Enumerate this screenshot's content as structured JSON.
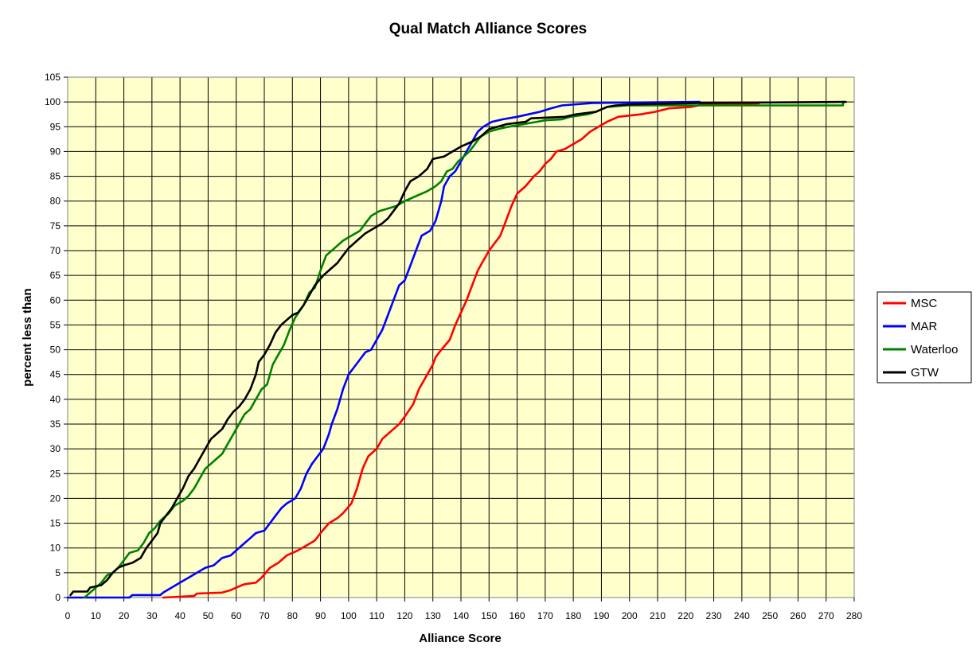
{
  "chart_data": {
    "type": "line",
    "title": "Qual Match Alliance Scores",
    "xlabel": "Alliance Score",
    "ylabel": "percent less than",
    "xlim": [
      0,
      280
    ],
    "ylim": [
      0,
      105
    ],
    "x_ticks": [
      0,
      10,
      20,
      30,
      40,
      50,
      60,
      70,
      80,
      90,
      100,
      110,
      120,
      130,
      140,
      150,
      160,
      170,
      180,
      190,
      200,
      210,
      220,
      230,
      240,
      250,
      260,
      270,
      280
    ],
    "y_ticks": [
      0,
      5,
      10,
      15,
      20,
      25,
      30,
      35,
      40,
      45,
      50,
      55,
      60,
      65,
      70,
      75,
      80,
      85,
      90,
      95,
      100,
      105
    ],
    "grid": true,
    "legend": "right",
    "plot_background": "#FFFFCC",
    "series": [
      {
        "name": "MSC",
        "color": "#FF0000",
        "points": [
          [
            34,
            0
          ],
          [
            45,
            0.3
          ],
          [
            46,
            0.8
          ],
          [
            55,
            1
          ],
          [
            58,
            1.5
          ],
          [
            60,
            2
          ],
          [
            63,
            2.7
          ],
          [
            67,
            3
          ],
          [
            69,
            4
          ],
          [
            72,
            6
          ],
          [
            75,
            7
          ],
          [
            78,
            8.5
          ],
          [
            82,
            9.5
          ],
          [
            85,
            10.5
          ],
          [
            88,
            11.5
          ],
          [
            90,
            13
          ],
          [
            93,
            15
          ],
          [
            96,
            16
          ],
          [
            98,
            17
          ],
          [
            101,
            19
          ],
          [
            103,
            22
          ],
          [
            105,
            26
          ],
          [
            107,
            28.5
          ],
          [
            110,
            30
          ],
          [
            112,
            32
          ],
          [
            115,
            33.5
          ],
          [
            118,
            35
          ],
          [
            120,
            36.5
          ],
          [
            123,
            39
          ],
          [
            125,
            42
          ],
          [
            128,
            45
          ],
          [
            130,
            47
          ],
          [
            131,
            48.5
          ],
          [
            133,
            50
          ],
          [
            136,
            52
          ],
          [
            138,
            55
          ],
          [
            140,
            57.5
          ],
          [
            142,
            60
          ],
          [
            144,
            63
          ],
          [
            146,
            66
          ],
          [
            148,
            68
          ],
          [
            150,
            70
          ],
          [
            152,
            71.5
          ],
          [
            154,
            73
          ],
          [
            156,
            76
          ],
          [
            158,
            79
          ],
          [
            160,
            81.5
          ],
          [
            163,
            83
          ],
          [
            166,
            85
          ],
          [
            168,
            86
          ],
          [
            170,
            87.5
          ],
          [
            172,
            88.5
          ],
          [
            174,
            90
          ],
          [
            177,
            90.5
          ],
          [
            180,
            91.5
          ],
          [
            183,
            92.5
          ],
          [
            186,
            94
          ],
          [
            189,
            95
          ],
          [
            192,
            96
          ],
          [
            196,
            97
          ],
          [
            204,
            97.5
          ],
          [
            209,
            98
          ],
          [
            214,
            98.7
          ],
          [
            222,
            99
          ],
          [
            226,
            99.5
          ],
          [
            246,
            99.7
          ]
        ]
      },
      {
        "name": "MAR",
        "color": "#0000FF",
        "points": [
          [
            0,
            0
          ],
          [
            22,
            0
          ],
          [
            23,
            0.5
          ],
          [
            33,
            0.5
          ],
          [
            34,
            1
          ],
          [
            37,
            2
          ],
          [
            40,
            3
          ],
          [
            43,
            4
          ],
          [
            46,
            5
          ],
          [
            49,
            6
          ],
          [
            52,
            6.5
          ],
          [
            55,
            8
          ],
          [
            58,
            8.5
          ],
          [
            61,
            10
          ],
          [
            63,
            11
          ],
          [
            65,
            12
          ],
          [
            67,
            13
          ],
          [
            70,
            13.5
          ],
          [
            72,
            15
          ],
          [
            74,
            16.5
          ],
          [
            76,
            18
          ],
          [
            78,
            19
          ],
          [
            81,
            20
          ],
          [
            83,
            22
          ],
          [
            85,
            25
          ],
          [
            87,
            27
          ],
          [
            89,
            28.5
          ],
          [
            91,
            30
          ],
          [
            93,
            33
          ],
          [
            94,
            35
          ],
          [
            96,
            38
          ],
          [
            98,
            42
          ],
          [
            100,
            45
          ],
          [
            102,
            46.5
          ],
          [
            104,
            48
          ],
          [
            106,
            49.5
          ],
          [
            108,
            50
          ],
          [
            110,
            52
          ],
          [
            112,
            54
          ],
          [
            114,
            57
          ],
          [
            116,
            60
          ],
          [
            118,
            63
          ],
          [
            120,
            64
          ],
          [
            122,
            67
          ],
          [
            124,
            70
          ],
          [
            126,
            73
          ],
          [
            129,
            74
          ],
          [
            131,
            76
          ],
          [
            133,
            80
          ],
          [
            134,
            83
          ],
          [
            136,
            85
          ],
          [
            138,
            86
          ],
          [
            140,
            88
          ],
          [
            142,
            90
          ],
          [
            144,
            92
          ],
          [
            146,
            94
          ],
          [
            148,
            95
          ],
          [
            151,
            96
          ],
          [
            155,
            96.5
          ],
          [
            160,
            97
          ],
          [
            164,
            97.5
          ],
          [
            168,
            98
          ],
          [
            172,
            98.7
          ],
          [
            176,
            99.3
          ],
          [
            187,
            99.8
          ],
          [
            225,
            100
          ]
        ]
      },
      {
        "name": "Waterloo",
        "color": "#008000",
        "points": [
          [
            6,
            0
          ],
          [
            8,
            1
          ],
          [
            10,
            2
          ],
          [
            12,
            3
          ],
          [
            14,
            4.5
          ],
          [
            16,
            5
          ],
          [
            18,
            6
          ],
          [
            20,
            7.5
          ],
          [
            22,
            9
          ],
          [
            25,
            9.5
          ],
          [
            27,
            11
          ],
          [
            29,
            13
          ],
          [
            31,
            14
          ],
          [
            33,
            15.5
          ],
          [
            36,
            17
          ],
          [
            38,
            18.5
          ],
          [
            41,
            19.5
          ],
          [
            43,
            20.5
          ],
          [
            45,
            22
          ],
          [
            47,
            24
          ],
          [
            49,
            26
          ],
          [
            51,
            27
          ],
          [
            53,
            28
          ],
          [
            55,
            29
          ],
          [
            57,
            31
          ],
          [
            59,
            33
          ],
          [
            61,
            35
          ],
          [
            63,
            37
          ],
          [
            65,
            38
          ],
          [
            67,
            40
          ],
          [
            69,
            42
          ],
          [
            71,
            43
          ],
          [
            73,
            47
          ],
          [
            75,
            49
          ],
          [
            77,
            51
          ],
          [
            79,
            54
          ],
          [
            81,
            56.5
          ],
          [
            84,
            59
          ],
          [
            86,
            61.5
          ],
          [
            88,
            62.5
          ],
          [
            90,
            66
          ],
          [
            92,
            69
          ],
          [
            94,
            70
          ],
          [
            96,
            71
          ],
          [
            98,
            72
          ],
          [
            101,
            73
          ],
          [
            104,
            74
          ],
          [
            106,
            75.5
          ],
          [
            108,
            77
          ],
          [
            111,
            78
          ],
          [
            114,
            78.5
          ],
          [
            117,
            79
          ],
          [
            120,
            80
          ],
          [
            124,
            81
          ],
          [
            128,
            82
          ],
          [
            131,
            83
          ],
          [
            133,
            84
          ],
          [
            135,
            86
          ],
          [
            137,
            86.5
          ],
          [
            139,
            88
          ],
          [
            141,
            89
          ],
          [
            143,
            90
          ],
          [
            145,
            91.5
          ],
          [
            147,
            93
          ],
          [
            150,
            94
          ],
          [
            153,
            94.5
          ],
          [
            157,
            95
          ],
          [
            162,
            95.5
          ],
          [
            167,
            96
          ],
          [
            170,
            96.3
          ],
          [
            176,
            96.5
          ],
          [
            179,
            97
          ],
          [
            185,
            97.5
          ],
          [
            188,
            98
          ],
          [
            192,
            99
          ],
          [
            199,
            99.3
          ],
          [
            230,
            99.3
          ],
          [
            276,
            99.3
          ],
          [
            276,
            100
          ]
        ]
      },
      {
        "name": "GTW",
        "color": "#000000",
        "points": [
          [
            1,
            0.5
          ],
          [
            2,
            1.2
          ],
          [
            7,
            1.2
          ],
          [
            8,
            2
          ],
          [
            12,
            2.5
          ],
          [
            14,
            3.5
          ],
          [
            16,
            5
          ],
          [
            18,
            6
          ],
          [
            20,
            6.5
          ],
          [
            23,
            7
          ],
          [
            26,
            8
          ],
          [
            28,
            10
          ],
          [
            30,
            11.5
          ],
          [
            32,
            13
          ],
          [
            33,
            15
          ],
          [
            35,
            16.5
          ],
          [
            37,
            18
          ],
          [
            39,
            20
          ],
          [
            41,
            22
          ],
          [
            43,
            24.5
          ],
          [
            45,
            26
          ],
          [
            47,
            28
          ],
          [
            49,
            30
          ],
          [
            51,
            32
          ],
          [
            53,
            33
          ],
          [
            55,
            34
          ],
          [
            57,
            36
          ],
          [
            59,
            37.5
          ],
          [
            61,
            38.5
          ],
          [
            63,
            40
          ],
          [
            65,
            42
          ],
          [
            67,
            45
          ],
          [
            68,
            47.5
          ],
          [
            70,
            49
          ],
          [
            72,
            51
          ],
          [
            74,
            53.5
          ],
          [
            76,
            55
          ],
          [
            78,
            56
          ],
          [
            80,
            57
          ],
          [
            82,
            57.5
          ],
          [
            84,
            59
          ],
          [
            86,
            61
          ],
          [
            88,
            63
          ],
          [
            91,
            65
          ],
          [
            93,
            66
          ],
          [
            96,
            67.5
          ],
          [
            98,
            69
          ],
          [
            100,
            70.5
          ],
          [
            103,
            72
          ],
          [
            106,
            73.5
          ],
          [
            109,
            74.5
          ],
          [
            112,
            75.5
          ],
          [
            114,
            76.5
          ],
          [
            116,
            78
          ],
          [
            118,
            79.5
          ],
          [
            120,
            82
          ],
          [
            122,
            84
          ],
          [
            125,
            85
          ],
          [
            128,
            86.5
          ],
          [
            130,
            88.5
          ],
          [
            134,
            89
          ],
          [
            137,
            90
          ],
          [
            140,
            91
          ],
          [
            144,
            92
          ],
          [
            147,
            93
          ],
          [
            150,
            94.5
          ],
          [
            156,
            95.5
          ],
          [
            163,
            96
          ],
          [
            165,
            96.7
          ],
          [
            177,
            97
          ],
          [
            181,
            97.5
          ],
          [
            188,
            98
          ],
          [
            192,
            99
          ],
          [
            195,
            99.3
          ],
          [
            200,
            99.5
          ],
          [
            225,
            99.8
          ],
          [
            277,
            100
          ]
        ]
      }
    ]
  }
}
